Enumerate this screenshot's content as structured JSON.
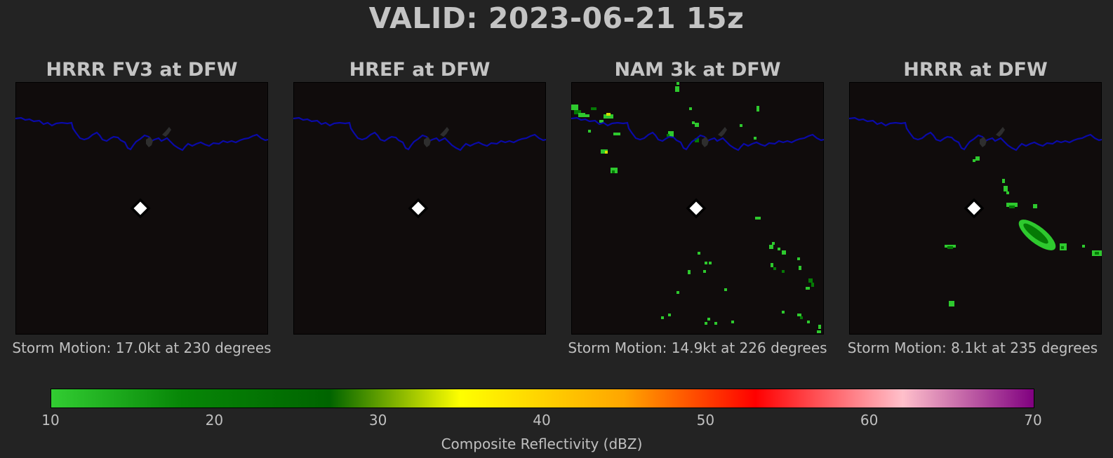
{
  "title": "VALID: 2023-06-21 15z",
  "colors": {
    "background": "#232323",
    "map_background": "#100c0c",
    "river": "#0a0aa8",
    "station_marker": "#ffffff",
    "echo_light": "#2ec92e",
    "echo_dark": "#057a05"
  },
  "panels": [
    {
      "title": "HRRR FV3 at DFW",
      "storm_motion": "Storm Motion: 17.0kt at 230 degrees"
    },
    {
      "title": "HREF at DFW",
      "storm_motion": ""
    },
    {
      "title": "NAM 3k at DFW",
      "storm_motion": "Storm Motion: 14.9kt at 226 degrees"
    },
    {
      "title": "HRRR at DFW",
      "storm_motion": "Storm Motion: 8.1kt at 235 degrees"
    }
  ],
  "colorbar": {
    "label": "Composite Reflectivity (dBZ)",
    "range": [
      10,
      70
    ],
    "ticks": [
      "10",
      "20",
      "30",
      "40",
      "50",
      "60",
      "70"
    ],
    "stops": [
      {
        "value": 10,
        "color": "#32cd32"
      },
      {
        "value": 18,
        "color": "#078607"
      },
      {
        "value": 27,
        "color": "#006400"
      },
      {
        "value": 35,
        "color": "#ffff00"
      },
      {
        "value": 45,
        "color": "#ffa500"
      },
      {
        "value": 53,
        "color": "#ff0000"
      },
      {
        "value": 62,
        "color": "#ffc0cb"
      },
      {
        "value": 70,
        "color": "#800080"
      }
    ]
  },
  "chart_data": {
    "type": "heatmap",
    "title": "VALID: 2023-06-21 15z",
    "colorbar_label": "Composite Reflectivity (dBZ)",
    "colorbar_range": [
      10,
      70
    ],
    "panels": [
      {
        "title": "HRRR FV3 at DFW",
        "echoes": "none"
      },
      {
        "title": "HREF at DFW",
        "echoes": "none"
      },
      {
        "title": "NAM 3k at DFW",
        "echoes": "scattered isolated cells, mostly 10-25 dBZ"
      },
      {
        "title": "HRRR at DFW",
        "echoes": "elongated cluster southeast of station, 10-25 dBZ"
      }
    ]
  }
}
